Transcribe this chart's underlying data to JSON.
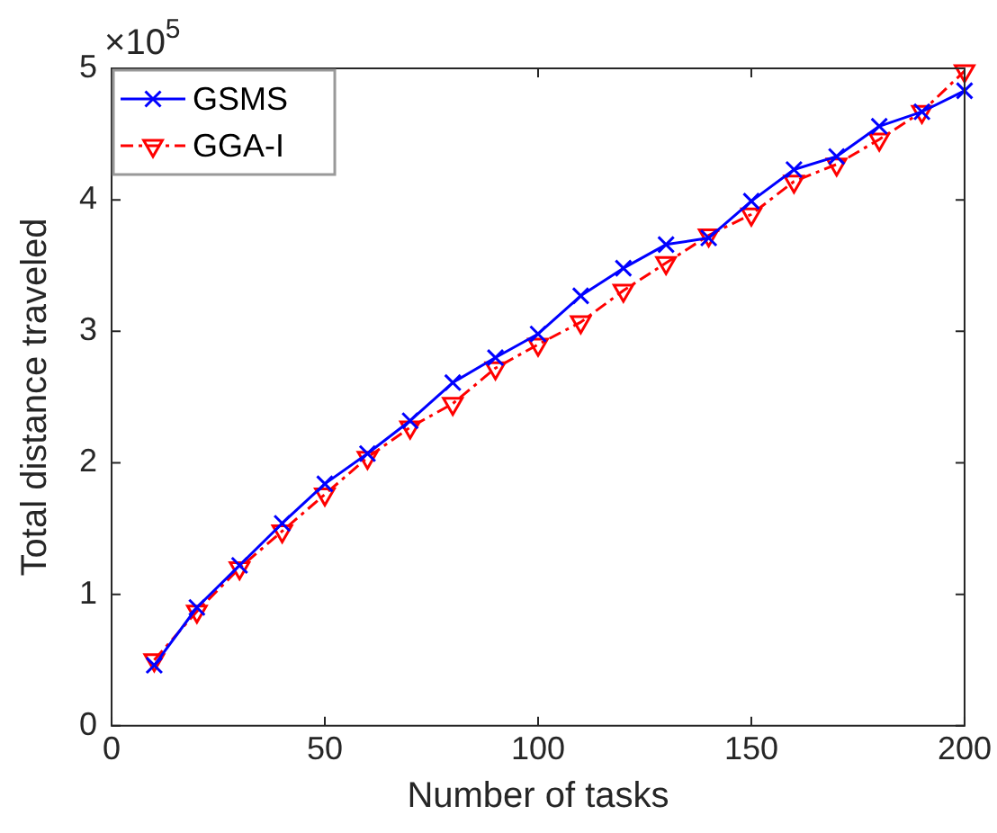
{
  "chart_data": {
    "type": "line",
    "xlabel": "Number of tasks",
    "ylabel": "Total distance traveled",
    "annotations": [
      "×10$^{5}$"
    ],
    "x": [
      10,
      20,
      30,
      40,
      50,
      60,
      70,
      80,
      90,
      100,
      110,
      120,
      130,
      140,
      150,
      160,
      170,
      180,
      190,
      200
    ],
    "series": [
      {
        "name": "GSMS",
        "color": "#0000ff",
        "marker": "cross",
        "line_style": "solid",
        "values": [
          0.46,
          0.9,
          1.22,
          1.54,
          1.84,
          2.07,
          2.32,
          2.61,
          2.8,
          2.98,
          3.27,
          3.48,
          3.66,
          3.71,
          3.99,
          4.23,
          4.33,
          4.56,
          4.67,
          4.83
        ]
      },
      {
        "name": "GGA-I",
        "color": "#ff0000",
        "marker": "triangle",
        "line_style": "dashed",
        "values": [
          0.5,
          0.87,
          1.2,
          1.48,
          1.76,
          2.04,
          2.27,
          2.45,
          2.72,
          2.9,
          3.07,
          3.31,
          3.52,
          3.73,
          3.89,
          4.14,
          4.27,
          4.46,
          4.67,
          4.98
        ]
      }
    ],
    "xlim": [
      0,
      200
    ],
    "xticks": [
      0,
      50,
      100,
      150,
      200
    ],
    "ylim": [
      0,
      5
    ],
    "yticks": [
      0,
      1,
      2,
      3,
      4,
      5
    ],
    "grid": false,
    "legend": "top left"
  }
}
